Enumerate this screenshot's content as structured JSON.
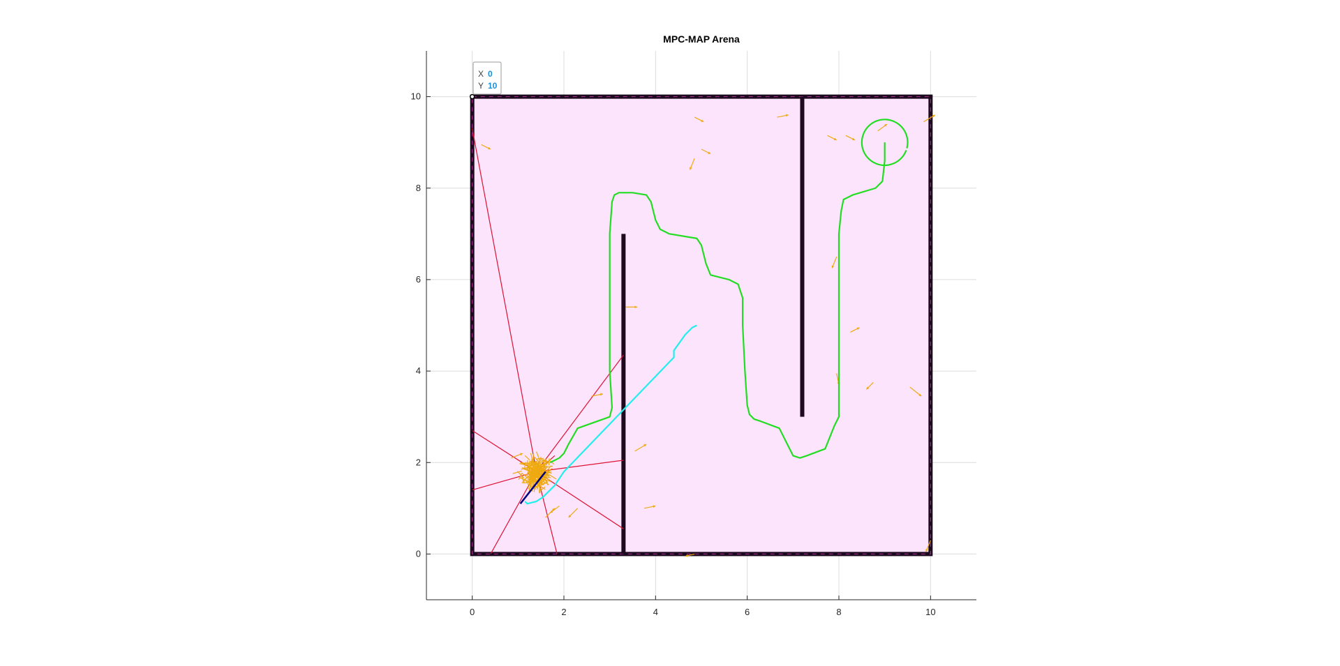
{
  "chart_data": {
    "type": "scatter",
    "title": "MPC-MAP Arena",
    "xlabel": "",
    "ylabel": "",
    "xlim": [
      -1,
      11
    ],
    "ylim": [
      -1,
      11
    ],
    "xticks": [
      0,
      2,
      4,
      6,
      8,
      10
    ],
    "yticks": [
      0,
      2,
      4,
      6,
      8,
      10
    ],
    "xtick_labels": [
      "0",
      "2",
      "4",
      "6",
      "8",
      "10"
    ],
    "ytick_labels": [
      "0",
      "2",
      "4",
      "6",
      "8",
      "10"
    ],
    "grid": true,
    "arena": {
      "x": [
        0,
        10
      ],
      "y": [
        0,
        10
      ],
      "fill": "#fce4fc",
      "wall_color": "#1e0a1e"
    },
    "walls": [
      {
        "x": [
          3.3,
          3.3
        ],
        "y": [
          0,
          7
        ]
      },
      {
        "x": [
          7.2,
          7.2
        ],
        "y": [
          3,
          10
        ]
      }
    ],
    "series": [
      {
        "color": "#22dd22",
        "x": [
          1.7,
          1.9,
          2.0,
          2.1,
          2.3,
          3.0,
          3.05,
          3.0,
          3.0,
          3.05,
          3.1,
          3.2,
          3.5,
          3.8,
          3.9,
          4.0,
          4.1,
          4.3,
          4.9,
          5.0,
          5.1,
          5.2,
          5.6,
          5.8,
          5.9,
          5.9,
          5.95,
          6.0,
          6.05,
          6.15,
          6.3,
          6.7,
          6.9,
          7.0,
          7.15,
          7.3,
          7.7,
          7.9,
          8.0,
          8.0,
          8.0,
          8.05,
          8.1,
          8.3,
          8.8,
          8.95,
          9.0,
          9.0
        ],
        "y": [
          2.0,
          2.1,
          2.2,
          2.4,
          2.75,
          3.0,
          3.2,
          4.0,
          7.0,
          7.7,
          7.85,
          7.9,
          7.9,
          7.85,
          7.7,
          7.3,
          7.1,
          7.0,
          6.9,
          6.75,
          6.35,
          6.1,
          6.0,
          5.9,
          5.6,
          5.0,
          4.0,
          3.25,
          3.05,
          2.95,
          2.9,
          2.75,
          2.35,
          2.15,
          2.1,
          2.15,
          2.3,
          2.8,
          3.0,
          3.5,
          7.0,
          7.5,
          7.75,
          7.85,
          8.0,
          8.15,
          8.6,
          9.0
        ]
      },
      {
        "color": "#22dd22",
        "shape": "circle",
        "center": [
          9,
          9
        ],
        "radius": 0.5,
        "angle_range_deg": [
          -15,
          340
        ]
      },
      {
        "color": "#22eeee",
        "x": [
          1.15,
          1.2,
          1.4,
          1.55,
          1.8,
          2.0,
          4.4,
          4.4,
          4.65,
          4.8,
          4.9
        ],
        "y": [
          1.15,
          1.1,
          1.15,
          1.25,
          1.5,
          1.8,
          4.3,
          4.45,
          4.8,
          4.95,
          5.0
        ]
      },
      {
        "color": "#000080",
        "x": [
          1.05,
          1.6
        ],
        "y": [
          1.1,
          1.8
        ]
      },
      {
        "color": "#dd1133",
        "origin": [
          1.4,
          1.8
        ],
        "endpoints": [
          [
            0,
            9.3
          ],
          [
            1.8,
            2.15
          ],
          [
            3.3,
            4.35
          ],
          [
            3.3,
            2.05
          ],
          [
            3.3,
            0.55
          ],
          [
            1.85,
            0
          ],
          [
            0.4,
            0
          ],
          [
            0,
            1.4
          ],
          [
            0,
            2.7
          ]
        ]
      },
      {
        "color": "#eeaa11",
        "particle_cloud_center": [
          1.4,
          1.75
        ],
        "particle_cloud_spread": 0.22,
        "scattered": [
          [
            0.2,
            8.95,
            0.2,
            -0.1
          ],
          [
            4.85,
            9.55,
            0.2,
            -0.1
          ],
          [
            6.65,
            9.55,
            0.25,
            0.05
          ],
          [
            5.0,
            8.85,
            0.2,
            -0.1
          ],
          [
            4.85,
            8.65,
            -0.1,
            -0.25
          ],
          [
            7.75,
            9.15,
            0.2,
            -0.1
          ],
          [
            8.15,
            9.15,
            0.2,
            -0.1
          ],
          [
            9.85,
            9.45,
            0.25,
            0.15
          ],
          [
            8.85,
            9.25,
            0.2,
            0.15
          ],
          [
            7.95,
            6.5,
            -0.1,
            -0.25
          ],
          [
            8.25,
            4.85,
            0.2,
            0.1
          ],
          [
            7.95,
            3.95,
            0.05,
            -0.25
          ],
          [
            8.75,
            3.75,
            -0.15,
            -0.15
          ],
          [
            9.55,
            3.65,
            0.25,
            -0.2
          ],
          [
            3.35,
            5.4,
            0.25,
            0.0
          ],
          [
            2.6,
            3.45,
            0.25,
            0.05
          ],
          [
            3.55,
            2.25,
            0.25,
            0.15
          ],
          [
            3.75,
            1.0,
            0.25,
            0.05
          ],
          [
            4.85,
            0.0,
            -0.2,
            -0.05
          ],
          [
            10.0,
            0.3,
            -0.1,
            -0.25
          ],
          [
            2.3,
            1.0,
            -0.2,
            -0.2
          ],
          [
            1.6,
            0.8,
            0.2,
            0.2
          ],
          [
            0.85,
            2.1,
            0.25,
            0.1
          ],
          [
            1.9,
            1.05,
            -0.2,
            -0.15
          ]
        ]
      }
    ],
    "datatip": {
      "x_label": "X",
      "x_value": "0",
      "y_label": "Y",
      "y_value": "10"
    }
  }
}
